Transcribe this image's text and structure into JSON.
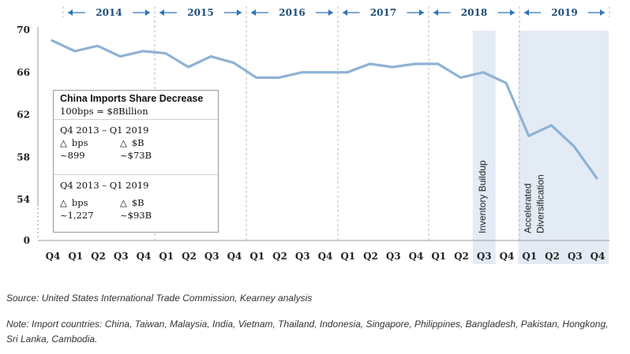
{
  "chart_data": {
    "type": "line",
    "years": [
      "2014",
      "2015",
      "2016",
      "2017",
      "2018",
      "2019"
    ],
    "categories": [
      "Q4",
      "Q1",
      "Q2",
      "Q3",
      "Q4",
      "Q1",
      "Q2",
      "Q3",
      "Q4",
      "Q1",
      "Q2",
      "Q3",
      "Q4",
      "Q1",
      "Q2",
      "Q3",
      "Q4",
      "Q1",
      "Q2",
      "Q3",
      "Q4",
      "Q1",
      "Q2",
      "Q3",
      "Q4"
    ],
    "values": [
      69.0,
      68.0,
      68.5,
      67.5,
      68.0,
      67.8,
      66.5,
      67.5,
      66.9,
      65.5,
      65.5,
      66.0,
      66.0,
      66.0,
      66.8,
      66.5,
      66.8,
      66.8,
      65.5,
      66.0,
      65.0,
      60.0,
      61.0,
      59.0,
      56.0
    ],
    "y_ticks": [
      "0",
      "54",
      "58",
      "62",
      "66",
      "70"
    ],
    "ylim": [
      0,
      70
    ],
    "series_color": "#8fb2d4",
    "band_color": "#e3ebf5",
    "bands": [
      {
        "start_index": 19,
        "end_index": 19,
        "label": "Inventory Buildup"
      },
      {
        "start_index": 21,
        "end_index": 24,
        "label_lines": [
          "Accelerated",
          "Diversification"
        ]
      }
    ]
  },
  "info_box": {
    "title": "China Imports Share Decrease",
    "subtitle": "100bps = $8Billion",
    "sections": [
      {
        "period": "Q4 2013 – Q1 2019",
        "bps_label": "bps",
        "usd_label": "$B",
        "bps_value": "~899",
        "usd_value": "~$73B"
      },
      {
        "period": "Q4 2013 – Q1 2019",
        "bps_label": "bps",
        "usd_label": "$B",
        "bps_value": "~1,227",
        "usd_value": "~$93B"
      }
    ],
    "delta_symbol": "△"
  },
  "source": "Source: United States International Trade Commission, Kearney analysis",
  "note": "Note: Import countries: China, Taiwan, Malaysia, India, Vietnam, Thailand, Indonesia, Singapore, Philippines, Bangladesh, Pakistan, Hongkong, Sri Lanka, Cambodia."
}
